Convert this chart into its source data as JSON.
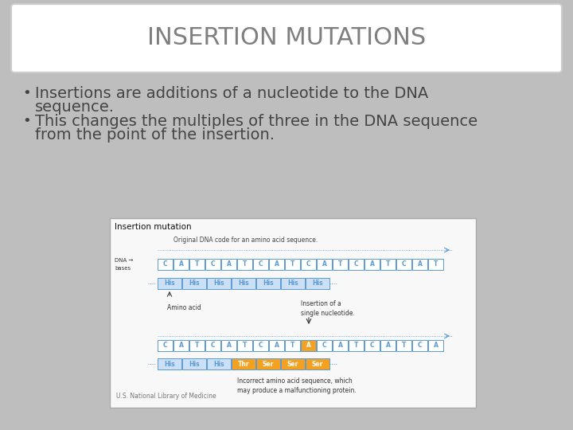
{
  "title": "INSERTION MUTATIONS",
  "title_fontsize": 22,
  "title_color": "#7f7f7f",
  "title_box_color": "#ffffff",
  "background_color": "#bebebe",
  "bullet1_line1": "Insertions are additions of a nucleotide to the DNA",
  "bullet1_line2": "sequence.",
  "bullet2_line1": "This changes the multiples of three in the DNA sequence",
  "bullet2_line2": "from the point of the insertion.",
  "bullet_fontsize": 14,
  "bullet_color": "#444444",
  "caption": "U.S. National Library of Medicine",
  "diagram_title": "Insertion mutation",
  "dna_original_label": "Original DNA code for an amino acid sequence.",
  "dna_bases_label1": "DNA →",
  "dna_bases_label2": "bases",
  "amino_acid_label": "Amino acid",
  "insertion_label": "Insertion of a\nsingle nucleotide.",
  "incorrect_label": "Incorrect amino acid sequence, which\nmay produce a malfunctioning protein.",
  "his_boxes_top": [
    "His",
    "His",
    "His",
    "His",
    "His",
    "His",
    "His"
  ],
  "bot_labels": [
    "His",
    "His",
    "His",
    "Thr",
    "Ser",
    "Ser",
    "Ser"
  ],
  "bot_colors_face": [
    "#cce0f5",
    "#cce0f5",
    "#cce0f5",
    "#f4a020",
    "#f4a020",
    "#f4a020",
    "#f4a020"
  ],
  "bot_colors_text": [
    "#5b9bd5",
    "#5b9bd5",
    "#5b9bd5",
    "#ffffff",
    "#ffffff",
    "#ffffff",
    "#ffffff"
  ],
  "his_face_color": "#cce0f5",
  "his_text_color": "#5b9bd5",
  "blue_color": "#5b9bd5",
  "orange_color": "#f4a020",
  "dna_top_seq": [
    "C",
    "A",
    "T",
    "C",
    "A",
    "T",
    "C",
    "A",
    "T",
    "C",
    "A",
    "T",
    "C",
    "A",
    "T",
    "C",
    "A",
    "T"
  ],
  "dna_bot_seq": [
    "C",
    "A",
    "T",
    "C",
    "A",
    "T",
    "C",
    "A",
    "T",
    "A",
    "C",
    "A",
    "T",
    "C",
    "A",
    "T",
    "C",
    "A"
  ],
  "inserted_index": 9
}
